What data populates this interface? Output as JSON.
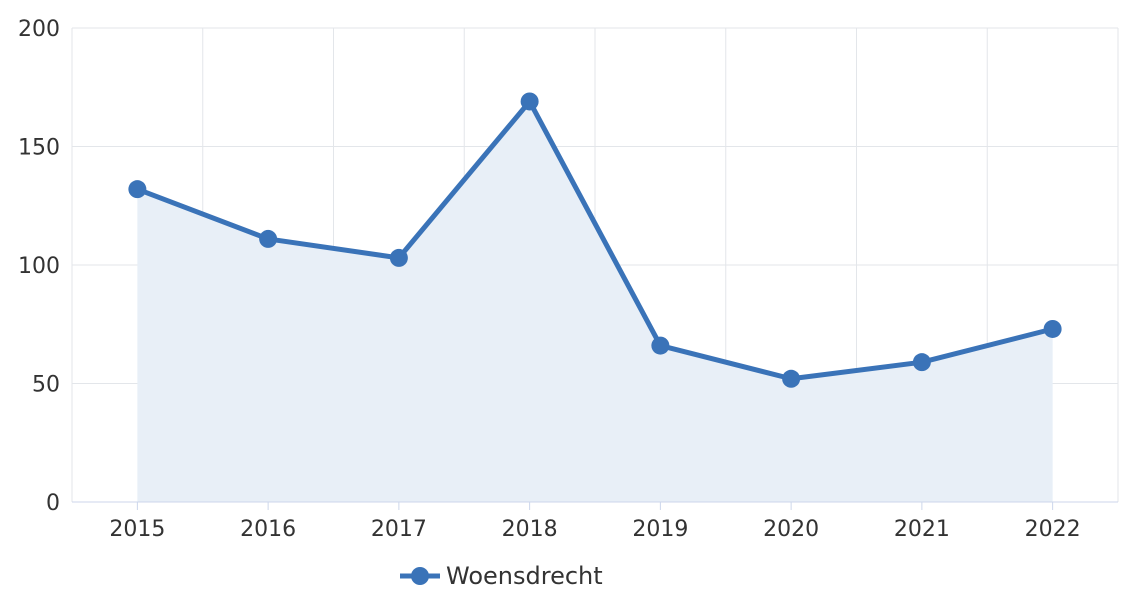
{
  "chart_data": {
    "type": "area",
    "title": "",
    "xlabel": "",
    "ylabel": "",
    "categories": [
      "2015",
      "2016",
      "2017",
      "2018",
      "2019",
      "2020",
      "2021",
      "2022"
    ],
    "series": [
      {
        "name": "Woensdrecht",
        "values": [
          132,
          111,
          103,
          169,
          66,
          52,
          59,
          73
        ],
        "color": "#3a73b8",
        "fill": "#e8eff7"
      }
    ],
    "ylim": [
      0,
      200
    ],
    "yticks": [
      0,
      50,
      100,
      150,
      200
    ],
    "grid": true,
    "legend": "bottom-center"
  }
}
